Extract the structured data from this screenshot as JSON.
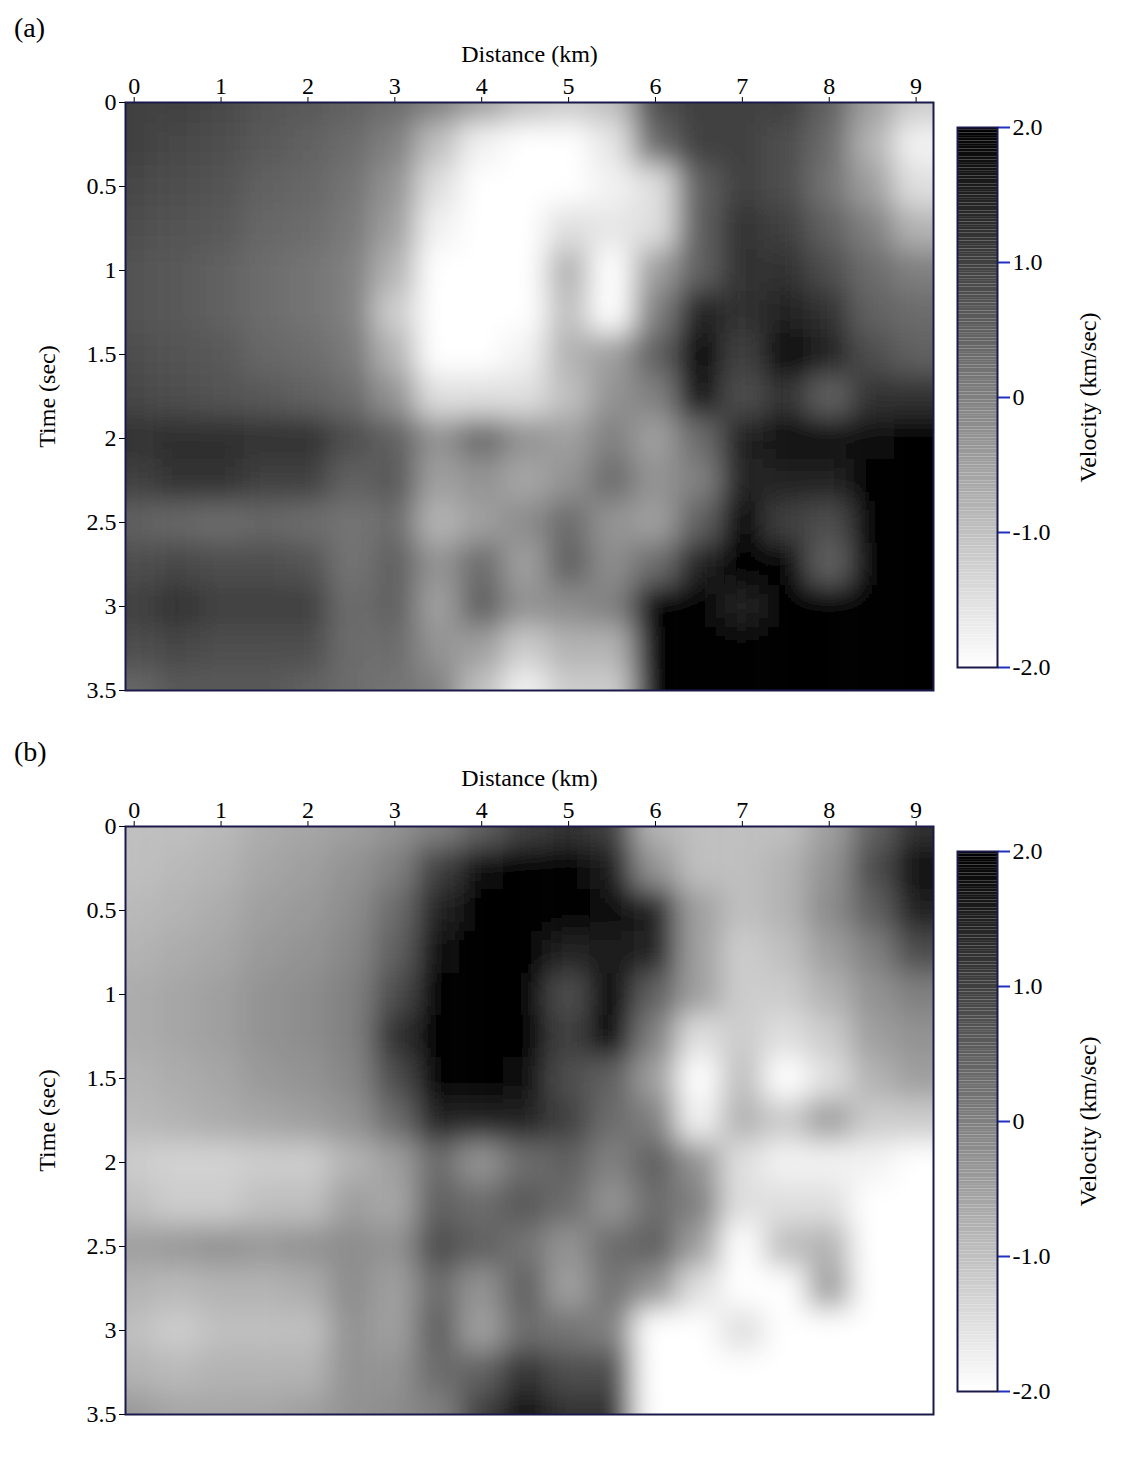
{
  "chart_data": [
    {
      "type": "heatmap",
      "label": "(a)",
      "x_label": "Distance (km)",
      "y_label": "Time (sec)",
      "xlim": [
        -0.1,
        9.2
      ],
      "ylim": [
        0,
        3.5
      ],
      "xticks": [
        0,
        1,
        2,
        3,
        4,
        5,
        6,
        7,
        8,
        9
      ],
      "yticks": [
        0,
        0.5,
        1,
        1.5,
        2,
        2.5,
        3,
        3.5
      ],
      "x": [
        0,
        0.5,
        1,
        1.5,
        2,
        2.5,
        3,
        3.5,
        4,
        4.5,
        5,
        5.5,
        6,
        6.5,
        7,
        7.5,
        8,
        8.5,
        9
      ],
      "y": [
        0,
        0.25,
        0.5,
        0.75,
        1,
        1.25,
        1.5,
        1.75,
        2,
        2.25,
        2.5,
        2.75,
        3,
        3.25,
        3.5
      ],
      "cells": [
        [
          1.0,
          1.0,
          0.9,
          0.7,
          0.6,
          0.5,
          0.3,
          0.0,
          -0.5,
          -1.0,
          -1.2,
          -1.0,
          0.8,
          1.0,
          1.0,
          1.0,
          0.5,
          -0.5,
          -1.2
        ],
        [
          1.0,
          0.9,
          0.8,
          0.6,
          0.5,
          0.3,
          0.0,
          -1.0,
          -1.8,
          -2.0,
          -2.0,
          -1.6,
          0.3,
          1.0,
          1.0,
          0.8,
          0.3,
          -0.8,
          -1.8
        ],
        [
          0.9,
          0.8,
          0.7,
          0.5,
          0.4,
          0.2,
          -0.3,
          -1.5,
          -2.0,
          -2.0,
          -2.0,
          -1.8,
          -1.5,
          0.5,
          1.0,
          0.8,
          0.2,
          -0.5,
          -1.5
        ],
        [
          0.8,
          0.7,
          0.6,
          0.4,
          0.3,
          0.1,
          -0.5,
          -1.8,
          -2.0,
          -2.0,
          -1.5,
          -1.6,
          -1.5,
          0.5,
          1.2,
          1.0,
          0.5,
          0.0,
          -0.8
        ],
        [
          0.7,
          0.6,
          0.5,
          0.3,
          0.2,
          0.0,
          -0.8,
          -2.0,
          -2.0,
          -2.0,
          -0.8,
          -2.0,
          -0.5,
          0.5,
          1.2,
          1.2,
          0.8,
          0.3,
          0.0
        ],
        [
          0.7,
          0.6,
          0.5,
          0.3,
          0.2,
          0.0,
          -1.2,
          -2.0,
          -2.0,
          -2.0,
          -1.0,
          -2.0,
          0.0,
          1.5,
          1.2,
          1.5,
          1.2,
          0.5,
          0.3
        ],
        [
          0.8,
          0.7,
          0.6,
          0.4,
          0.3,
          0.1,
          -0.8,
          -2.0,
          -2.0,
          -1.8,
          -0.8,
          -0.5,
          0.5,
          2.0,
          1.0,
          2.0,
          1.5,
          0.8,
          0.5
        ],
        [
          0.9,
          0.8,
          0.7,
          0.6,
          0.5,
          0.3,
          -0.3,
          -1.5,
          -1.5,
          -1.5,
          -1.0,
          -0.3,
          0.0,
          1.8,
          0.8,
          1.2,
          0.5,
          1.2,
          1.2
        ],
        [
          1.2,
          1.3,
          1.3,
          1.2,
          1.2,
          0.8,
          0.5,
          -0.3,
          0.3,
          -0.3,
          -0.5,
          0.0,
          -0.5,
          0.3,
          1.5,
          1.8,
          1.8,
          1.8,
          2.0
        ],
        [
          1.0,
          1.2,
          1.2,
          1.0,
          1.0,
          0.5,
          0.6,
          -0.5,
          -0.3,
          -0.6,
          -0.3,
          0.3,
          -0.3,
          0.0,
          1.5,
          1.5,
          1.5,
          2.0,
          2.0
        ],
        [
          0.5,
          0.4,
          0.3,
          0.4,
          0.3,
          0.2,
          0.3,
          -0.8,
          -0.5,
          -0.2,
          0.3,
          -0.3,
          -0.5,
          0.5,
          2.0,
          1.0,
          0.8,
          2.0,
          2.0
        ],
        [
          0.8,
          0.9,
          0.8,
          0.8,
          0.7,
          0.2,
          0.5,
          -0.3,
          0.3,
          -0.5,
          0.5,
          -0.2,
          0.3,
          1.5,
          2.0,
          2.0,
          0.5,
          2.0,
          2.0
        ],
        [
          1.0,
          1.2,
          1.0,
          1.0,
          1.0,
          0.3,
          0.5,
          -0.5,
          0.5,
          -0.3,
          -0.2,
          0.0,
          2.0,
          2.0,
          1.5,
          2.0,
          2.0,
          2.0,
          2.0
        ],
        [
          0.8,
          0.9,
          0.8,
          0.8,
          0.8,
          0.3,
          0.3,
          -0.3,
          -0.5,
          -1.2,
          -0.8,
          -0.8,
          2.0,
          2.0,
          2.0,
          2.0,
          2.0,
          2.0,
          2.0
        ],
        [
          0.4,
          0.6,
          0.6,
          0.6,
          0.5,
          0.3,
          0.2,
          0.0,
          -1.0,
          -1.8,
          -1.2,
          -1.2,
          2.0,
          2.0,
          2.0,
          2.0,
          2.0,
          2.0,
          2.0
        ]
      ],
      "colorbar": {
        "label": "Velocity (km/sec)",
        "range": [
          -2.0,
          2.0
        ],
        "colors": [
          "#ffffff",
          "#000000"
        ],
        "ticks": [
          {
            "value": 2.0,
            "label": "2.0"
          },
          {
            "value": 1.0,
            "label": "1.0"
          },
          0,
          {
            "value": -1.0,
            "label": "-1.0"
          },
          {
            "value": -2.0,
            "label": "-2.0"
          }
        ]
      }
    },
    {
      "type": "heatmap",
      "label": "(b)",
      "x_label": "Distance (km)",
      "y_label": "Time (sec)",
      "xlim": [
        -0.1,
        9.2
      ],
      "ylim": [
        0,
        3.5
      ],
      "xticks": [
        0,
        1,
        2,
        3,
        4,
        5,
        6,
        7,
        8,
        9
      ],
      "yticks": [
        0,
        0.5,
        1,
        1.5,
        2,
        2.5,
        3,
        3.5
      ],
      "x": [
        0,
        0.5,
        1,
        1.5,
        2,
        2.5,
        3,
        3.5,
        4,
        4.5,
        5,
        5.5,
        6,
        6.5,
        7,
        7.5,
        8,
        8.5,
        9
      ],
      "y": [
        0,
        0.25,
        0.5,
        0.75,
        1,
        1.25,
        1.5,
        1.75,
        2,
        2.25,
        2.5,
        2.75,
        3,
        3.25,
        3.5
      ],
      "cells": [
        [
          -1.0,
          -1.0,
          -0.9,
          -0.7,
          -0.6,
          -0.5,
          -0.3,
          0.0,
          0.5,
          1.0,
          1.2,
          1.0,
          -0.8,
          -1.0,
          -1.0,
          -1.0,
          -0.5,
          0.5,
          1.2
        ],
        [
          -1.0,
          -0.9,
          -0.8,
          -0.6,
          -0.5,
          -0.3,
          0.0,
          1.0,
          1.8,
          2.0,
          2.0,
          1.6,
          -0.3,
          -1.0,
          -1.0,
          -0.8,
          -0.3,
          0.8,
          1.8
        ],
        [
          -0.9,
          -0.8,
          -0.7,
          -0.5,
          -0.4,
          -0.2,
          0.3,
          1.5,
          2.0,
          2.0,
          2.0,
          1.8,
          1.5,
          -0.5,
          -1.0,
          -0.8,
          -0.2,
          0.5,
          1.5
        ],
        [
          -0.8,
          -0.7,
          -0.6,
          -0.4,
          -0.3,
          -0.1,
          0.5,
          1.8,
          2.0,
          2.0,
          1.5,
          1.6,
          1.5,
          -0.5,
          -1.2,
          -1.0,
          -0.5,
          0.0,
          0.8
        ],
        [
          -0.7,
          -0.6,
          -0.5,
          -0.3,
          -0.2,
          0.0,
          0.8,
          2.0,
          2.0,
          2.0,
          0.8,
          2.0,
          0.5,
          -0.5,
          -1.2,
          -1.2,
          -0.8,
          -0.3,
          0.0
        ],
        [
          -0.7,
          -0.6,
          -0.5,
          -0.3,
          -0.2,
          0.0,
          1.2,
          2.0,
          2.0,
          2.0,
          1.0,
          2.0,
          0.0,
          -1.5,
          -1.2,
          -1.5,
          -1.2,
          -0.5,
          -0.3
        ],
        [
          -0.8,
          -0.7,
          -0.6,
          -0.4,
          -0.3,
          -0.1,
          0.8,
          2.0,
          2.0,
          1.8,
          0.8,
          0.5,
          -0.5,
          -2.0,
          -1.0,
          -2.0,
          -1.5,
          -0.8,
          -0.5
        ],
        [
          -0.9,
          -0.8,
          -0.7,
          -0.6,
          -0.5,
          -0.3,
          0.3,
          1.5,
          1.5,
          1.5,
          1.0,
          0.3,
          0.0,
          -1.8,
          -0.8,
          -1.2,
          -0.5,
          -1.2,
          -1.2
        ],
        [
          -1.2,
          -1.3,
          -1.3,
          -1.2,
          -1.2,
          -0.8,
          -0.5,
          0.3,
          -0.3,
          0.3,
          0.5,
          0.0,
          0.5,
          -0.3,
          -1.5,
          -1.8,
          -1.8,
          -1.8,
          -2.0
        ],
        [
          -1.0,
          -1.2,
          -1.2,
          -1.0,
          -1.0,
          -0.5,
          -0.6,
          0.5,
          0.3,
          0.6,
          0.3,
          -0.3,
          0.3,
          0.0,
          -1.5,
          -1.5,
          -1.5,
          -2.0,
          -2.0
        ],
        [
          -0.5,
          -0.4,
          -0.3,
          -0.4,
          -0.3,
          -0.2,
          -0.3,
          0.8,
          0.5,
          0.2,
          -0.3,
          0.3,
          0.5,
          -0.5,
          -2.0,
          -1.0,
          -0.8,
          -2.0,
          -2.0
        ],
        [
          -0.8,
          -0.9,
          -0.8,
          -0.8,
          -0.7,
          -0.2,
          -0.5,
          0.3,
          -0.3,
          0.5,
          -0.5,
          0.2,
          -0.3,
          -1.5,
          -2.0,
          -2.0,
          -0.5,
          -2.0,
          -2.0
        ],
        [
          -1.0,
          -1.2,
          -1.0,
          -1.0,
          -1.0,
          -0.3,
          -0.5,
          0.5,
          -0.5,
          0.3,
          0.2,
          0.0,
          -2.0,
          -2.0,
          -1.5,
          -2.0,
          -2.0,
          -2.0,
          -2.0
        ],
        [
          -0.8,
          -0.9,
          -0.8,
          -0.8,
          -0.8,
          -0.3,
          -0.3,
          0.3,
          0.5,
          1.2,
          0.8,
          0.8,
          -2.0,
          -2.0,
          -2.0,
          -2.0,
          -2.0,
          -2.0,
          -2.0
        ],
        [
          -0.4,
          -0.6,
          -0.6,
          -0.6,
          -0.5,
          -0.3,
          -0.2,
          0.0,
          1.0,
          1.8,
          1.2,
          1.2,
          -2.0,
          -2.0,
          -2.0,
          -2.0,
          -2.0,
          -2.0,
          -2.0
        ]
      ],
      "colorbar": {
        "label": "Velocity (km/sec)",
        "range": [
          -2.0,
          2.0
        ],
        "colors": [
          "#ffffff",
          "#000000"
        ],
        "ticks": [
          {
            "value": 2.0,
            "label": "2.0"
          },
          {
            "value": 1.0,
            "label": "1.0"
          },
          0,
          {
            "value": -1.0,
            "label": "-1.0"
          },
          {
            "value": -2.0,
            "label": "-2.0"
          }
        ]
      }
    }
  ]
}
